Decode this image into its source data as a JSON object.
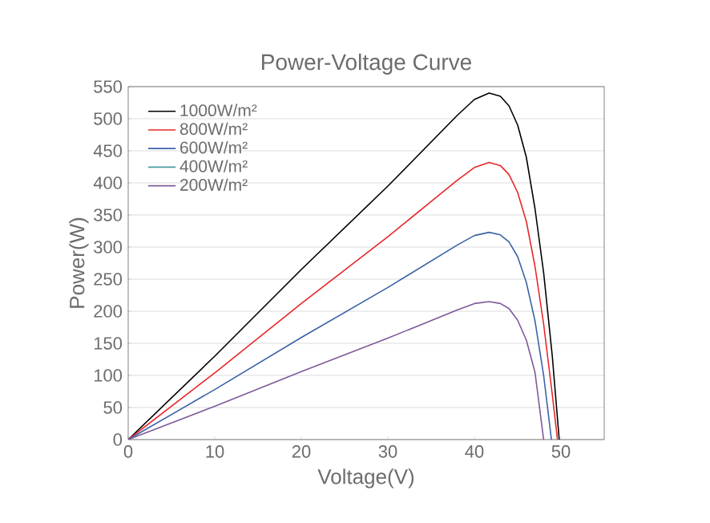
{
  "chart_data": {
    "type": "line",
    "title": "Power-Voltage Curve",
    "xlabel": "Voltage(V)",
    "ylabel": "Power(W)",
    "xlim": [
      0,
      55
    ],
    "ylim": [
      0,
      550
    ],
    "xticks": [
      0,
      10,
      20,
      30,
      40,
      50
    ],
    "yticks": [
      0,
      50,
      100,
      150,
      200,
      250,
      300,
      350,
      400,
      450,
      500,
      550
    ],
    "grid": "y",
    "legend": "top left",
    "line_style": "solid",
    "marker": "none",
    "series": [
      {
        "name": "1000W/m²",
        "color": "#000000",
        "x": [
          0,
          10,
          20,
          30,
          38,
          40,
          41.7,
          43,
          44,
          45,
          46,
          47,
          48,
          49,
          49.8
        ],
        "values": [
          0,
          130,
          265,
          395,
          505,
          530,
          540,
          535,
          520,
          490,
          440,
          360,
          260,
          130,
          0
        ]
      },
      {
        "name": "800W/m²",
        "color": "#e8262a",
        "x": [
          0,
          10,
          20,
          30,
          38,
          40,
          41.7,
          43,
          44,
          45,
          46,
          47,
          48,
          49,
          49.6
        ],
        "values": [
          0,
          104,
          212,
          316,
          404,
          424,
          432,
          427,
          413,
          385,
          340,
          270,
          180,
          70,
          0
        ]
      },
      {
        "name": "600W/m²",
        "color": "#3b63a8",
        "x": [
          0,
          10,
          20,
          30,
          38,
          40,
          41.7,
          43,
          44,
          45,
          46,
          47,
          48,
          48.9
        ],
        "values": [
          0,
          78,
          159,
          237,
          303,
          318,
          323,
          319,
          308,
          285,
          245,
          185,
          100,
          0
        ]
      },
      {
        "name": "400W/m²",
        "color": "#4a9aa0"
      },
      {
        "name": "200W/m²",
        "color": "#7d5a9a",
        "x": [
          0,
          10,
          20,
          30,
          38,
          40,
          41.7,
          43,
          44,
          45,
          46,
          47,
          48
        ],
        "values": [
          0,
          52,
          106,
          158,
          202,
          212,
          215,
          212,
          204,
          186,
          155,
          105,
          0
        ]
      }
    ]
  }
}
